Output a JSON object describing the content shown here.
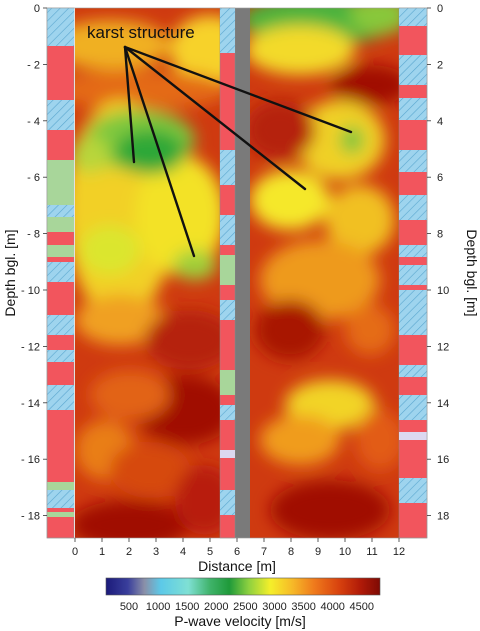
{
  "annotation": "karst structure",
  "y_axis_label_left": "Depth bgl. [m]",
  "y_axis_label_right": "Depth bgl. [m]",
  "x_axis_label": "Distance [m]",
  "colorbar_label": "P-wave velocity [m/s]",
  "y_ticks": [
    "0",
    "- 2",
    "- 4",
    "- 6",
    "- 8",
    "- 10",
    "- 12",
    "- 14",
    "- 16",
    "- 18"
  ],
  "y_ticks_right": [
    "0",
    "2",
    "4",
    "6",
    "8",
    "10",
    "12",
    "14",
    "16",
    "18"
  ],
  "x_ticks": [
    "0",
    "1",
    "2",
    "3",
    "4",
    "5",
    "6",
    "7",
    "8",
    "9",
    "10",
    "11",
    "12"
  ],
  "colorbar_ticks": [
    "500",
    "1000",
    "1500",
    "2000",
    "2500",
    "3000",
    "3500",
    "4000",
    "4500"
  ],
  "colors": {
    "section_base": "#cf3a10",
    "deep_red": "#a01006",
    "yellow": "#f2ea28",
    "green": "#3cb23c",
    "log_red": "#f2555d",
    "log_blue": "#9ed4ee",
    "log_green": "#a8d69a",
    "borehole_grey": "#7a7a7a"
  }
}
